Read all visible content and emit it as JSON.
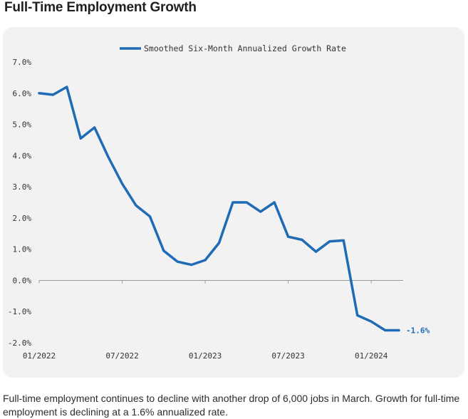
{
  "title": "Full-Time Employment Growth",
  "caption": "Full-time employment continues to decline with another drop of 6,000 jobs in March. Growth for full-time employment is declining at a 1.6% annualized rate.",
  "colors": {
    "series": "#1f6bb5",
    "card": "#f2f2f2",
    "text": "#333333"
  },
  "chart_data": {
    "type": "line",
    "title": "Full-Time Employment Growth",
    "xlabel": "",
    "ylabel": "",
    "ylim": [
      -2.0,
      7.0
    ],
    "yticks": [
      7.0,
      6.0,
      5.0,
      4.0,
      3.0,
      2.0,
      1.0,
      0.0,
      -1.0,
      -2.0
    ],
    "ytick_labels": [
      "7.0%",
      "6.0%",
      "5.0%",
      "4.0%",
      "3.0%",
      "2.0%",
      "1.0%",
      "0.0%",
      "-1.0%",
      "-2.0%"
    ],
    "xticks": [
      0,
      6,
      12,
      18,
      24
    ],
    "xtick_labels": [
      "01/2022",
      "07/2022",
      "01/2023",
      "07/2023",
      "01/2024"
    ],
    "legend": "top-center",
    "grid": false,
    "series": [
      {
        "name": "Smoothed Six-Month Annualized Growth Rate",
        "x": [
          0,
          1,
          2,
          3,
          4,
          5,
          6,
          7,
          8,
          9,
          10,
          11,
          12,
          13,
          14,
          15,
          16,
          17,
          18,
          19,
          20,
          21,
          22,
          23,
          24,
          25,
          26
        ],
        "values": [
          6.0,
          5.95,
          6.2,
          4.55,
          4.9,
          3.95,
          3.1,
          2.4,
          2.05,
          0.95,
          0.6,
          0.5,
          0.65,
          1.2,
          2.5,
          2.5,
          2.2,
          2.5,
          1.4,
          1.3,
          0.92,
          1.25,
          1.28,
          -1.12,
          -1.32,
          -1.6,
          -1.6
        ]
      }
    ],
    "end_label": "-1.6%"
  }
}
